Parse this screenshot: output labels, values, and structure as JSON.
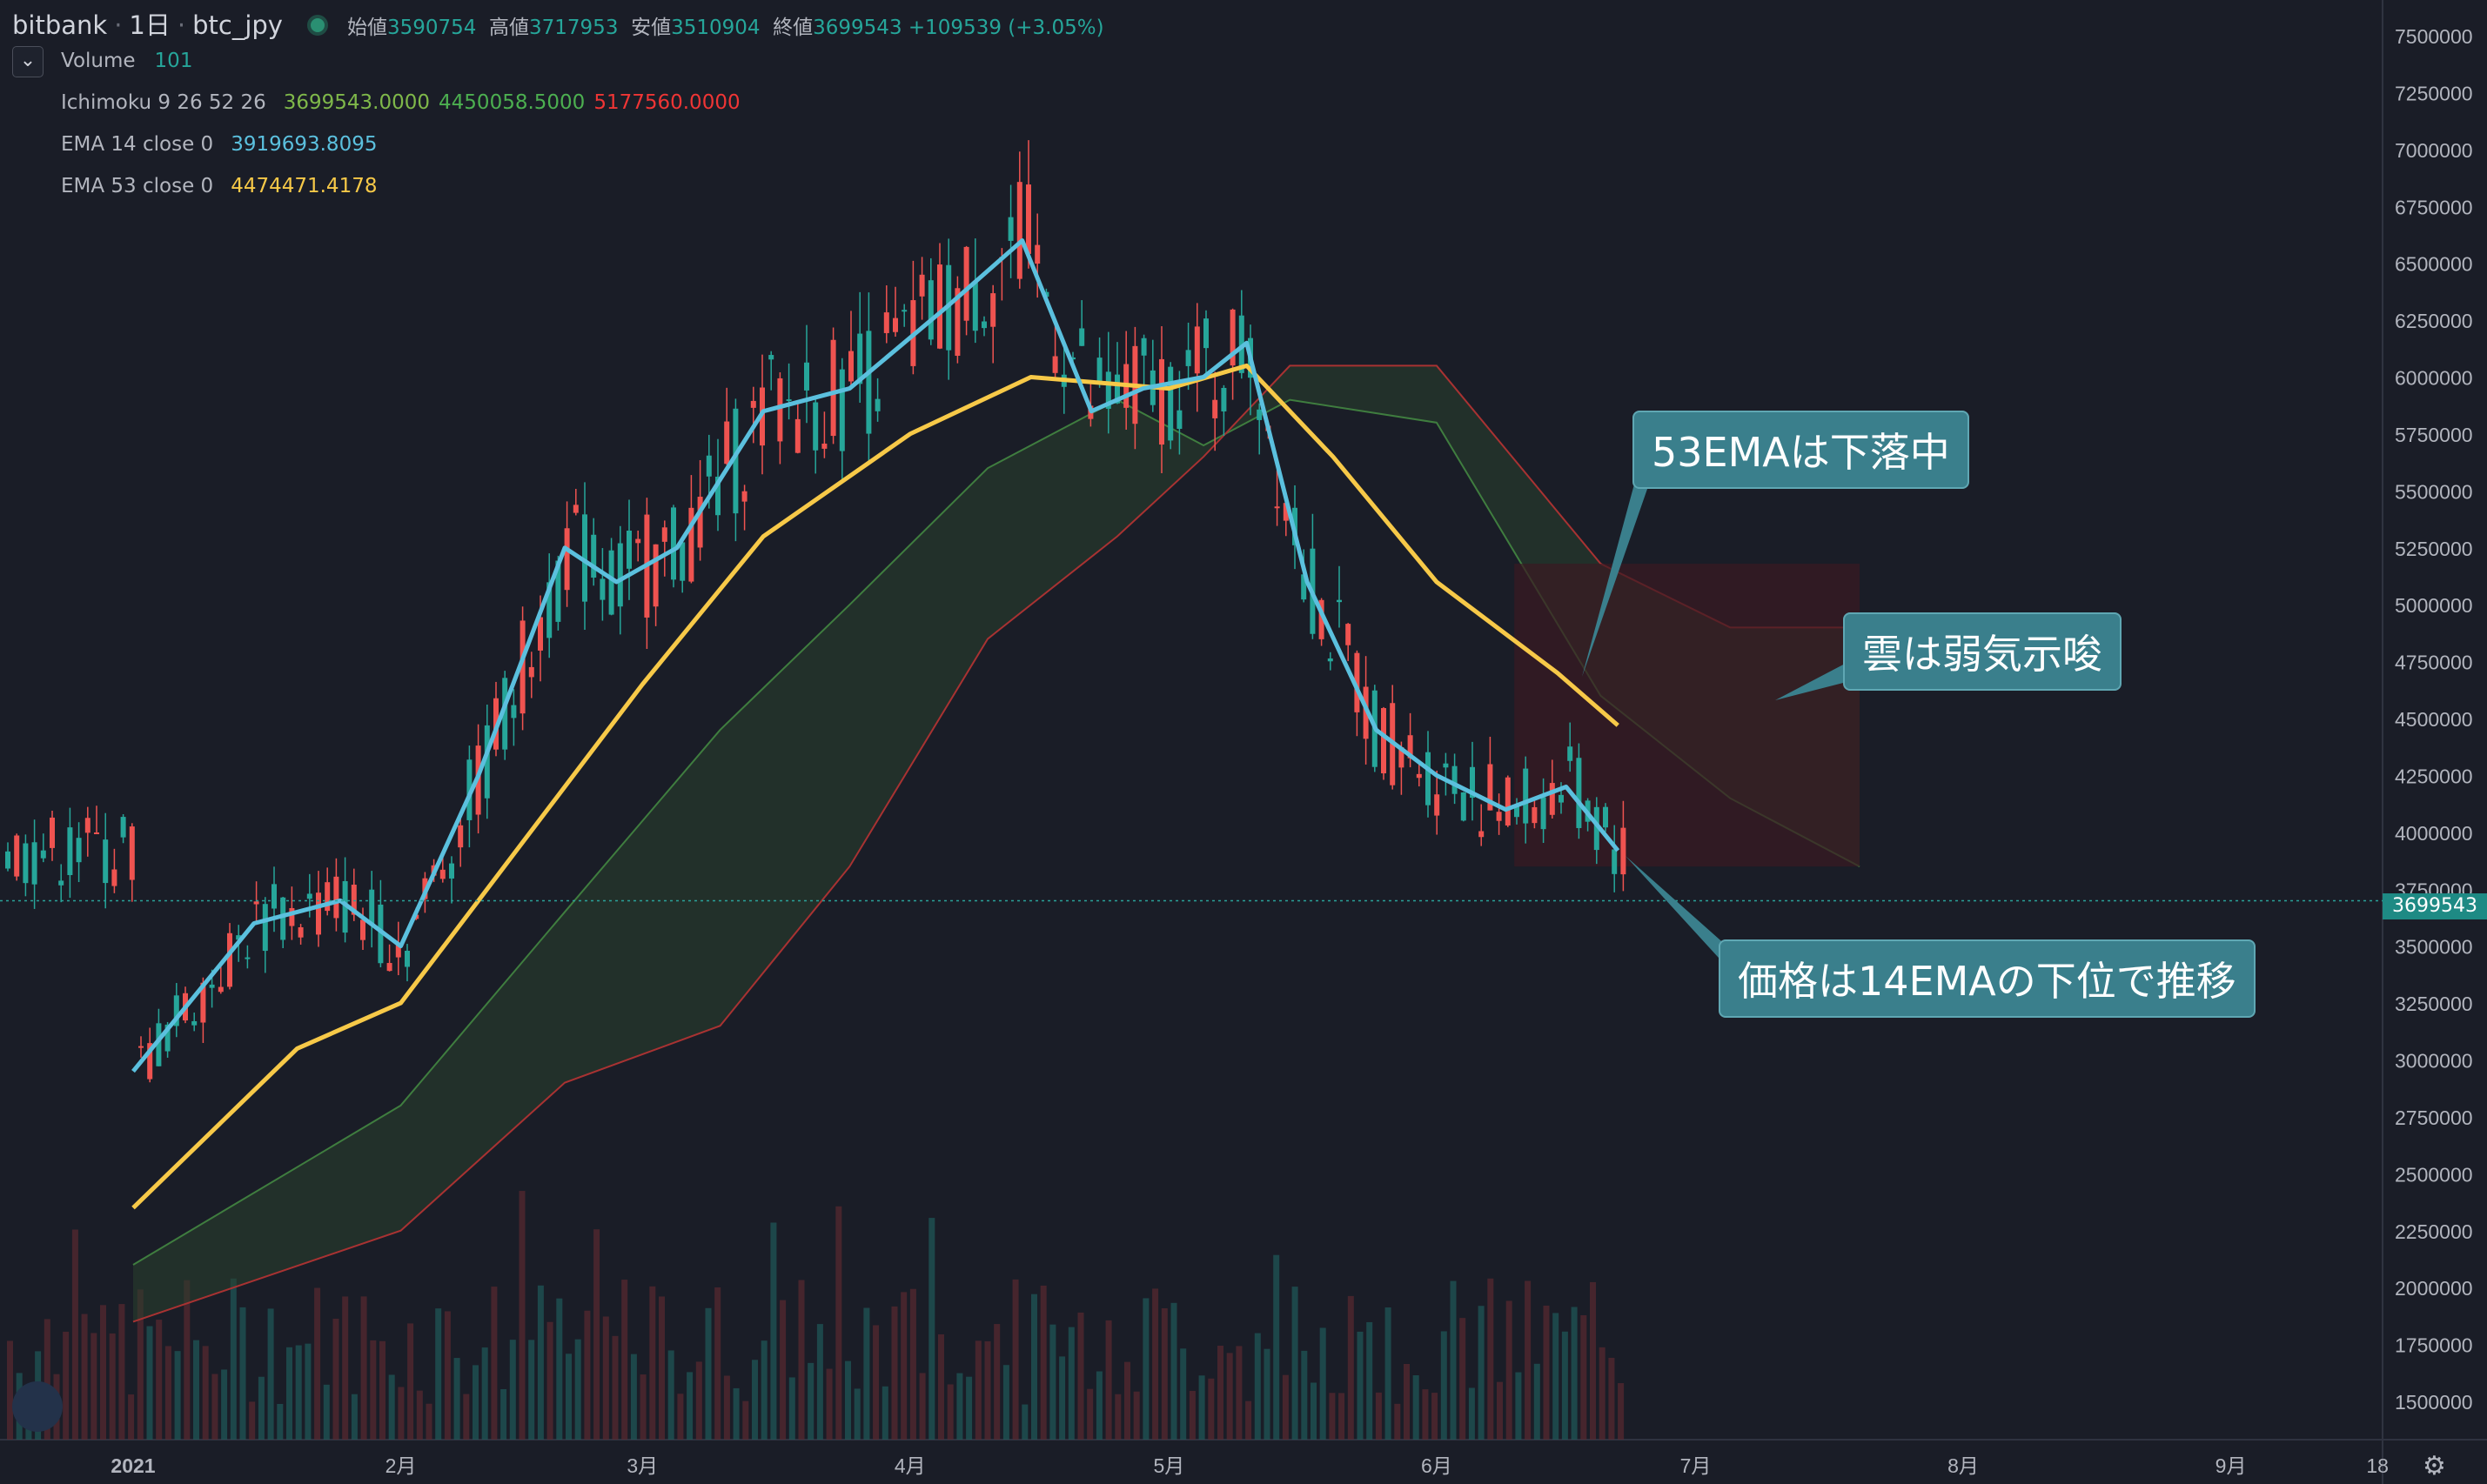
{
  "header": {
    "exchange": "bitbank",
    "interval": "1日",
    "symbol": "btc_jpy",
    "open_label": "始値",
    "open": "3590754",
    "high_label": "高値",
    "high": "3717953",
    "low_label": "安値",
    "low": "3510904",
    "close_label": "終値",
    "close": "3699543",
    "change": "+109539 (+3.05%)"
  },
  "indicators": {
    "volume": {
      "name": "Volume",
      "value": "101"
    },
    "ichimoku": {
      "name": "Ichimoku 9 26 52 26",
      "v1": "3699543.0000",
      "v2": "4450058.5000",
      "v3": "5177560.0000"
    },
    "ema14": {
      "name": "EMA 14 close 0",
      "value": "3919693.8095"
    },
    "ema53": {
      "name": "EMA 53 close 0",
      "value": "4474471.4178"
    }
  },
  "annotations": {
    "ema53_note": "53EMAは下落中",
    "cloud_note": "雲は弱気示唆",
    "price_note": "価格は14EMAの下位で推移"
  },
  "current_price_label": "3699543",
  "colors": {
    "background": "#1a1d27",
    "up": "#26a69a",
    "down": "#ef5350",
    "ema14": "#5bc0de",
    "ema53": "#f7c948",
    "cloud_bull": "#1f4a2a",
    "cloud_bear": "#4a1c22",
    "callout": "#3a7f8c"
  },
  "chart_data": {
    "type": "line",
    "title": "",
    "xlabel": "",
    "ylabel": "",
    "ylim": [
      1350000,
      7650000
    ],
    "y_ticks": [
      "7500000",
      "7250000",
      "7000000",
      "6750000",
      "6500000",
      "6250000",
      "6000000",
      "5750000",
      "5500000",
      "5250000",
      "5000000",
      "4750000",
      "4500000",
      "4250000",
      "4000000",
      "3750000",
      "3500000",
      "3250000",
      "3000000",
      "2750000",
      "2500000",
      "2250000",
      "2000000",
      "1750000",
      "1500000"
    ],
    "x_ticks": [
      "2021",
      "2月",
      "3月",
      "4月",
      "5月",
      "6月",
      "7月",
      "8月",
      "9月",
      "18"
    ],
    "series": [
      {
        "name": "EMA 14 close 0",
        "x": [
          "2021-01-01",
          "2021-01-15",
          "2021-01-25",
          "2021-02-01",
          "2021-02-10",
          "2021-02-20",
          "2021-02-26",
          "2021-03-05",
          "2021-03-15",
          "2021-03-25",
          "2021-04-05",
          "2021-04-14",
          "2021-04-22",
          "2021-04-28",
          "2021-05-05",
          "2021-05-10",
          "2021-05-17",
          "2021-05-25",
          "2021-06-01",
          "2021-06-09",
          "2021-06-16",
          "2021-06-22"
        ],
        "values": [
          2950000,
          3600000,
          3700000,
          3500000,
          4250000,
          5250000,
          5100000,
          5250000,
          5850000,
          5950000,
          6300000,
          6600000,
          5850000,
          5950000,
          6000000,
          6150000,
          5100000,
          4450000,
          4250000,
          4100000,
          4200000,
          3920000
        ]
      },
      {
        "name": "EMA 53 close 0",
        "x": [
          "2021-01-01",
          "2021-01-20",
          "2021-02-01",
          "2021-02-15",
          "2021-03-01",
          "2021-03-15",
          "2021-04-01",
          "2021-04-15",
          "2021-05-01",
          "2021-05-10",
          "2021-05-20",
          "2021-06-01",
          "2021-06-15",
          "2021-06-22"
        ],
        "values": [
          2350000,
          3050000,
          3250000,
          3950000,
          4650000,
          5300000,
          5750000,
          6000000,
          5950000,
          6050000,
          5650000,
          5100000,
          4700000,
          4470000
        ]
      },
      {
        "name": "Ichimoku leading span A",
        "x": [
          "2021-01-01",
          "2021-02-01",
          "2021-02-20",
          "2021-03-10",
          "2021-03-25",
          "2021-04-10",
          "2021-04-25",
          "2021-05-05",
          "2021-05-15",
          "2021-06-01",
          "2021-06-20",
          "2021-07-05",
          "2021-07-20"
        ],
        "values": [
          2100000,
          2800000,
          3650000,
          4450000,
          5000000,
          5600000,
          5900000,
          5700000,
          5900000,
          5800000,
          4600000,
          4150000,
          3850000
        ]
      },
      {
        "name": "Ichimoku leading span B",
        "x": [
          "2021-01-01",
          "2021-02-01",
          "2021-02-20",
          "2021-03-10",
          "2021-03-25",
          "2021-04-10",
          "2021-04-25",
          "2021-05-05",
          "2021-05-15",
          "2021-06-01",
          "2021-06-20",
          "2021-07-05",
          "2021-07-20"
        ],
        "values": [
          1850000,
          2250000,
          2900000,
          3150000,
          3850000,
          4850000,
          5300000,
          5650000,
          6050000,
          6050000,
          5180000,
          4900000,
          4900000
        ]
      }
    ],
    "volume_bars": true,
    "current_price": 3699543,
    "grid": false,
    "legend": "top-left"
  }
}
